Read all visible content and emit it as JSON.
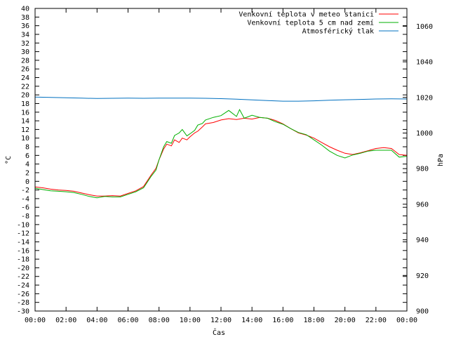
{
  "chart_data": {
    "type": "line",
    "xlabel": "Čas",
    "ylabel": "°C",
    "y2label": "hPa",
    "x_ticks": [
      "00:00",
      "02:00",
      "04:00",
      "06:00",
      "08:00",
      "10:00",
      "12:00",
      "14:00",
      "16:00",
      "18:00",
      "20:00",
      "22:00",
      "00:00"
    ],
    "xlim": [
      0,
      24
    ],
    "ylim": [
      -30,
      40
    ],
    "y2lim": [
      900,
      1070
    ],
    "y_ticks": [
      -30,
      -28,
      -26,
      -24,
      -22,
      -20,
      -18,
      -16,
      -14,
      -12,
      -10,
      -8,
      -6,
      -4,
      -2,
      0,
      2,
      4,
      6,
      8,
      10,
      12,
      14,
      16,
      18,
      20,
      22,
      24,
      26,
      28,
      30,
      32,
      34,
      36,
      38,
      40
    ],
    "y2_ticks": [
      900,
      920,
      940,
      960,
      980,
      1000,
      1020,
      1040,
      1060
    ],
    "grid": false,
    "legend_position": "top-right",
    "series": [
      {
        "name": "Venkovní teplota v meteo stanici",
        "color": "#ff0000",
        "axis": "left",
        "x": [
          0,
          0.5,
          1,
          1.5,
          2,
          2.5,
          3,
          3.5,
          4,
          4.5,
          5,
          5.5,
          6,
          6.5,
          7,
          7.5,
          7.8,
          8,
          8.3,
          8.5,
          8.8,
          9,
          9.3,
          9.5,
          9.8,
          10,
          10.3,
          10.5,
          10.8,
          11,
          11.5,
          12,
          12.5,
          13,
          13.5,
          14,
          14.5,
          15,
          15.5,
          16,
          16.5,
          17,
          17.5,
          18,
          18.5,
          19,
          19.5,
          20,
          20.5,
          21,
          21.5,
          22,
          22.5,
          23,
          23.5,
          24
        ],
        "y": [
          -1.3,
          -1.5,
          -1.8,
          -2.0,
          -2.1,
          -2.3,
          -2.7,
          -3.1,
          -3.4,
          -3.4,
          -3.3,
          -3.4,
          -2.8,
          -2.2,
          -1.2,
          1.5,
          3.0,
          5.0,
          7.5,
          8.6,
          8.2,
          9.6,
          9.0,
          10.0,
          9.6,
          10.3,
          11.2,
          11.6,
          12.6,
          13.3,
          13.6,
          14.2,
          14.5,
          14.3,
          14.6,
          14.4,
          14.8,
          14.6,
          14.1,
          13.3,
          12.2,
          11.2,
          10.7,
          10.0,
          9.0,
          8.0,
          7.2,
          6.5,
          6.2,
          6.6,
          7.1,
          7.6,
          7.8,
          7.6,
          6.2,
          6.0
        ]
      },
      {
        "name": "Venkovní teplota 5 cm nad zemí",
        "color": "#00b000",
        "axis": "left",
        "x": [
          0,
          0.5,
          1,
          1.5,
          2,
          2.5,
          3,
          3.5,
          4,
          4.5,
          5,
          5.5,
          6,
          6.5,
          7,
          7.5,
          7.8,
          8,
          8.3,
          8.5,
          8.8,
          9,
          9.3,
          9.5,
          9.8,
          10,
          10.3,
          10.5,
          10.8,
          11,
          11.5,
          12,
          12.5,
          13,
          13.2,
          13.5,
          14,
          14.5,
          15,
          15.5,
          16,
          16.5,
          17,
          17.5,
          18,
          18.5,
          19,
          19.5,
          20,
          20.5,
          21,
          21.5,
          22,
          22.5,
          23,
          23.5,
          24
        ],
        "y": [
          -1.6,
          -1.9,
          -2.2,
          -2.3,
          -2.4,
          -2.6,
          -3.0,
          -3.5,
          -3.8,
          -3.5,
          -3.6,
          -3.6,
          -3.0,
          -2.4,
          -1.5,
          1.2,
          2.6,
          5.0,
          8.0,
          9.2,
          8.8,
          10.6,
          11.2,
          12.0,
          10.5,
          11.0,
          11.8,
          13.0,
          13.4,
          14.2,
          14.8,
          15.2,
          16.4,
          15.0,
          16.6,
          14.6,
          15.3,
          14.8,
          14.6,
          13.8,
          13.2,
          12.2,
          11.3,
          10.8,
          9.6,
          8.4,
          7.0,
          6.0,
          5.4,
          6.1,
          6.5,
          7.0,
          7.2,
          7.2,
          7.2,
          5.6,
          5.8
        ]
      },
      {
        "name": "Atmosférický tlak",
        "color": "#0070c0",
        "axis": "right",
        "x": [
          0,
          1,
          2,
          3,
          4,
          5,
          6,
          7,
          8,
          9,
          10,
          11,
          12,
          13,
          14,
          15,
          16,
          17,
          18,
          19,
          20,
          21,
          22,
          23,
          24
        ],
        "y": [
          1020.2,
          1020.0,
          1019.8,
          1019.6,
          1019.4,
          1019.5,
          1019.6,
          1019.5,
          1019.6,
          1019.6,
          1019.6,
          1019.5,
          1019.3,
          1019.0,
          1018.6,
          1018.2,
          1017.9,
          1017.9,
          1018.1,
          1018.4,
          1018.7,
          1018.9,
          1019.1,
          1019.2,
          1019.1
        ]
      }
    ]
  }
}
